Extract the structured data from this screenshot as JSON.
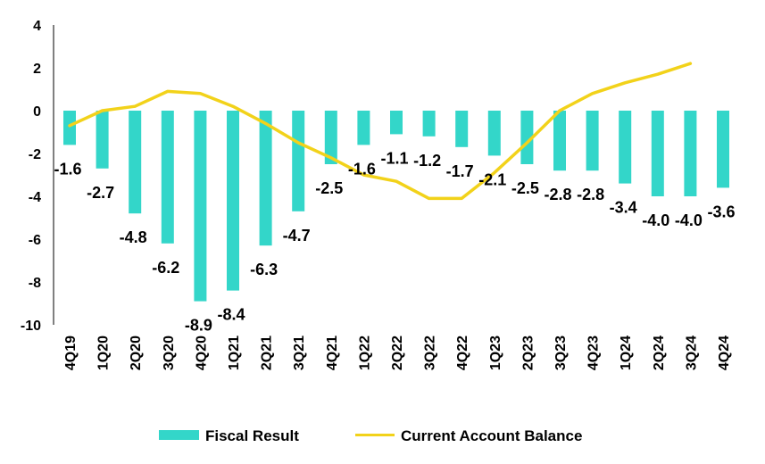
{
  "chart_data": {
    "type": "bar",
    "title": "",
    "xlabel": "",
    "ylabel": "",
    "ylim": [
      -10,
      4
    ],
    "yticks": [
      "4",
      "2",
      "0",
      "-2",
      "-4",
      "-6",
      "-8",
      "-10"
    ],
    "categories": [
      "4Q19",
      "1Q20",
      "2Q20",
      "3Q20",
      "4Q20",
      "1Q21",
      "2Q21",
      "3Q21",
      "4Q21",
      "1Q22",
      "2Q22",
      "3Q22",
      "4Q22",
      "1Q23",
      "2Q23",
      "3Q23",
      "4Q23",
      "1Q24",
      "2Q24",
      "3Q24",
      "4Q24"
    ],
    "series": [
      {
        "name": "Fiscal Result",
        "type": "bar",
        "color": "#33d6c9",
        "values": [
          -1.6,
          -2.7,
          -4.8,
          -6.2,
          -8.9,
          -8.4,
          -6.3,
          -4.7,
          -2.5,
          -1.6,
          -1.1,
          -1.2,
          -1.7,
          -2.1,
          -2.5,
          -2.8,
          -2.8,
          -3.4,
          -4.0,
          -4.0,
          -3.6
        ],
        "labels": [
          "-1.6",
          "-2.7",
          "-4.8",
          "-6.2",
          "-8.9",
          "-8.4",
          "-6.3",
          "-4.7",
          "-2.5",
          "-1.6",
          "-1.1",
          "-1.2",
          "-1.7",
          "-2.1",
          "-2.5",
          "-2.8",
          "-2.8",
          "-3.4",
          "-4.0",
          "-4.0",
          "-3.6"
        ]
      },
      {
        "name": "Current Account Balance",
        "type": "line",
        "color": "#f2d21a",
        "values": [
          -0.7,
          0.0,
          0.2,
          0.9,
          0.8,
          0.2,
          -0.6,
          -1.5,
          -2.2,
          -3.0,
          -3.3,
          -4.1,
          -4.1,
          -2.9,
          -1.5,
          0.0,
          0.8,
          1.3,
          1.7,
          2.2,
          null
        ]
      }
    ],
    "legend": [
      "Fiscal Result",
      "Current Account Balance"
    ],
    "legend_position": "bottom"
  }
}
